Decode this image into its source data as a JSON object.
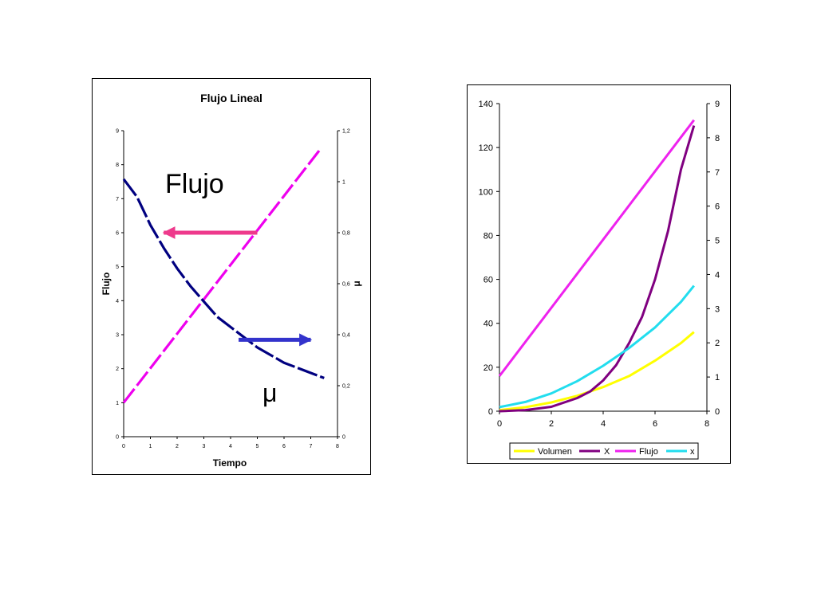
{
  "chart_data": [
    {
      "type": "line",
      "title": "Flujo Lineal",
      "xlabel": "Tiempo",
      "ylabel": "Flujo",
      "y2label": "μ",
      "xlim": [
        0,
        8
      ],
      "ylim": [
        0,
        9
      ],
      "y2lim": [
        0,
        1.2
      ],
      "xticks": [
        "0",
        "1",
        "2",
        "3",
        "4",
        "5",
        "6",
        "7",
        "8"
      ],
      "yticks": [
        "0",
        "1",
        "2",
        "3",
        "4",
        "5",
        "6",
        "7",
        "8",
        "9"
      ],
      "y2ticks": [
        "0",
        "0,2",
        "0,4",
        "0,6",
        "0,8",
        "1",
        "1,2"
      ],
      "grid": false,
      "annotations": [
        {
          "text": "Flujo",
          "x": 1.6,
          "y": 7.2,
          "arrow_from": [
            5,
            6
          ],
          "arrow_to": [
            1.5,
            6
          ]
        },
        {
          "text": "μ",
          "x": 5.3,
          "y": 1.25,
          "arrow_from": [
            4.3,
            2.85
          ],
          "arrow_to": [
            7.0,
            2.85
          ]
        }
      ],
      "series": [
        {
          "axis": "left",
          "color": "#ee00ee",
          "dashed": true,
          "x": [
            0,
            7.4
          ],
          "values": [
            1,
            8.5
          ]
        },
        {
          "axis": "right",
          "color": "#000080",
          "dashed": true,
          "x": [
            0,
            0.5,
            1,
            1.5,
            2,
            2.5,
            3,
            3.5,
            4,
            4.5,
            5,
            5.5,
            6,
            6.5,
            7,
            7.5
          ],
          "values": [
            1.01,
            0.94,
            0.83,
            0.74,
            0.66,
            0.59,
            0.53,
            0.47,
            0.43,
            0.39,
            0.35,
            0.32,
            0.29,
            0.27,
            0.25,
            0.23
          ]
        }
      ]
    },
    {
      "type": "line",
      "title": "",
      "xlabel": "",
      "ylabel": "",
      "xlim": [
        0,
        8
      ],
      "ylim": [
        0,
        140
      ],
      "y2lim": [
        0,
        9
      ],
      "xticks": [
        "0",
        "2",
        "4",
        "6",
        "8"
      ],
      "yticks": [
        "0",
        "20",
        "40",
        "60",
        "80",
        "100",
        "120",
        "140"
      ],
      "y2ticks": [
        "0",
        "1",
        "2",
        "3",
        "4",
        "5",
        "6",
        "7",
        "8",
        "9"
      ],
      "grid": false,
      "legend": "bottom",
      "series": [
        {
          "name": "Volumen",
          "axis": "left",
          "color": "#ffff00",
          "x": [
            0,
            1,
            2,
            3,
            4,
            5,
            6,
            7,
            7.5
          ],
          "values": [
            0.5,
            1.8,
            4,
            7,
            11,
            16,
            23,
            31,
            36
          ]
        },
        {
          "name": "X",
          "axis": "left",
          "color": "#800080",
          "x": [
            0,
            1,
            2,
            3,
            3.5,
            4,
            4.5,
            5,
            5.5,
            6,
            6.5,
            7,
            7.5
          ],
          "values": [
            0,
            0.5,
            2,
            6,
            9,
            14,
            21,
            31,
            43,
            60,
            82,
            110,
            130
          ]
        },
        {
          "name": "Flujo",
          "axis": "left",
          "color": "#ee22ee",
          "x": [
            0,
            7.5
          ],
          "values": [
            16,
            132.5
          ]
        },
        {
          "name": "x",
          "axis": "right",
          "color": "#22ddee",
          "x": [
            0,
            1,
            2,
            3,
            4,
            5,
            6,
            7,
            7.5
          ],
          "values": [
            0.12,
            0.27,
            0.52,
            0.88,
            1.33,
            1.85,
            2.45,
            3.2,
            3.67
          ]
        }
      ]
    }
  ]
}
